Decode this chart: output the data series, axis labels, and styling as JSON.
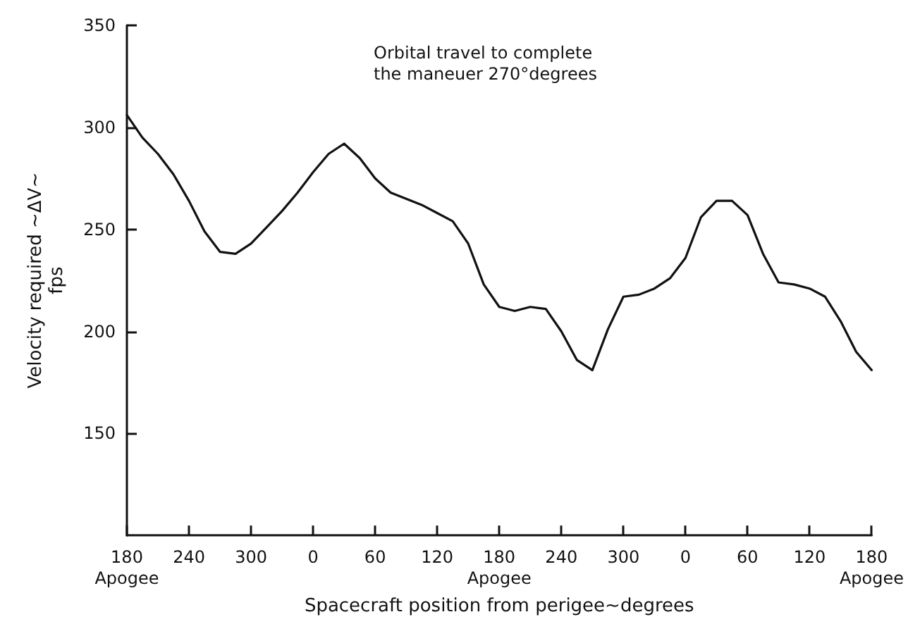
{
  "chart_data": {
    "type": "line",
    "xlabel": "Spacecraft position from perigee~degrees",
    "ylabel": "Velocity required ~ΔV~\nfps",
    "annotations": [
      "Orbital travel to complete\nthe maneuer 270°degrees"
    ],
    "categories": [
      "180\nApogee",
      null,
      null,
      null,
      "240",
      null,
      null,
      null,
      "300",
      null,
      null,
      null,
      "0",
      null,
      null,
      null,
      "60",
      null,
      null,
      null,
      "120",
      null,
      null,
      null,
      "180\nApogee",
      null,
      null,
      null,
      "240",
      null,
      null,
      null,
      "300",
      null,
      null,
      null,
      "0",
      null,
      null,
      null,
      "60",
      null,
      null,
      null,
      "120",
      null,
      null,
      null,
      "180\nApogee"
    ],
    "series": [
      {
        "color": "#111111",
        "values": [
          306,
          295,
          287,
          277,
          264,
          249,
          239,
          238,
          243,
          251,
          259,
          268,
          278,
          287,
          292,
          285,
          275,
          268,
          265,
          262,
          258,
          254,
          243,
          223,
          212,
          210,
          212,
          211,
          200,
          186,
          181,
          201,
          217,
          218,
          221,
          226,
          236,
          256,
          264,
          264,
          257,
          238,
          224,
          223,
          221,
          217,
          205,
          190,
          181
        ]
      }
    ],
    "ylim": [
      100,
      350
    ],
    "yticks": [
      150,
      200,
      250,
      300,
      350
    ],
    "grid": false,
    "marker": "none",
    "line_style": "solid"
  }
}
